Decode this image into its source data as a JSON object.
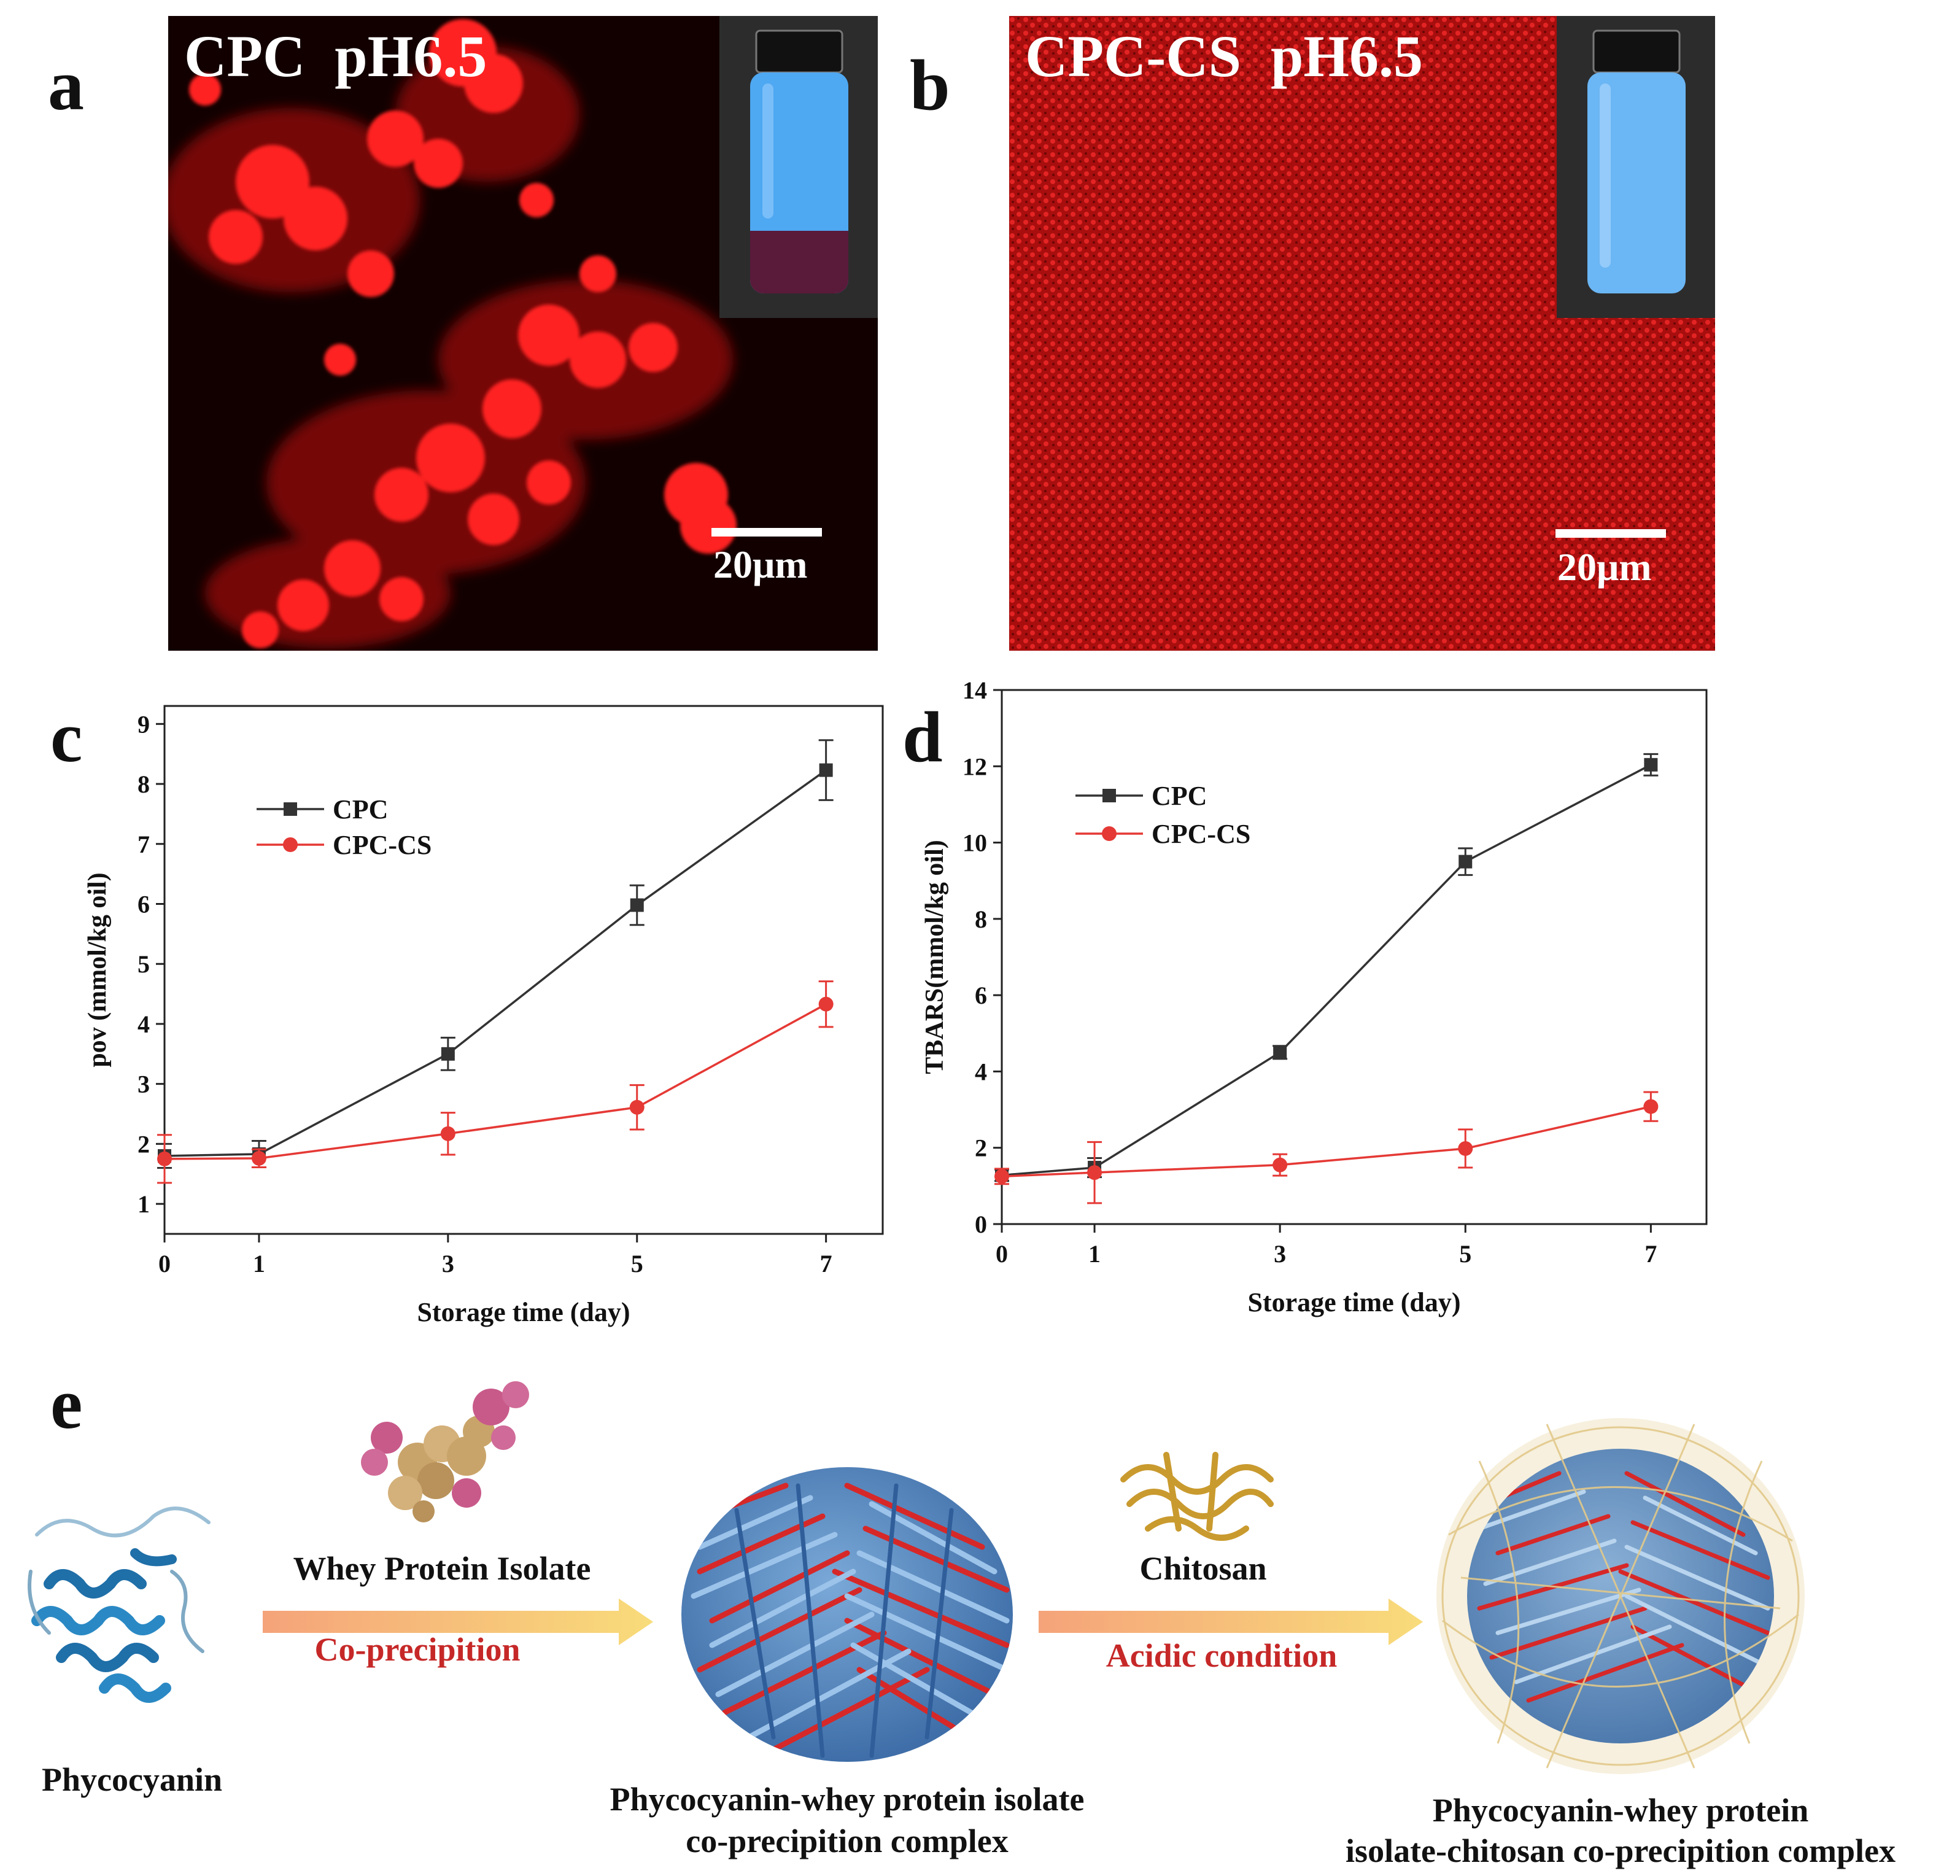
{
  "panels": {
    "a": {
      "letter": "a",
      "title": "CPC  pH6.5",
      "scale_label": "20μm"
    },
    "b": {
      "letter": "b",
      "title": "CPC-CS  pH6.5",
      "scale_label": "20μm"
    },
    "c": {
      "letter": "c"
    },
    "d": {
      "letter": "d"
    },
    "e": {
      "letter": "e"
    }
  },
  "colors": {
    "cpc_line": "#333333",
    "cpcs_line": "#e53935",
    "micro_red": "#d81818",
    "vial_blue": "#4ea8f2",
    "arrow": "#f5b88a",
    "condition_text": "#c62828"
  },
  "chart_data": [
    {
      "id": "c",
      "type": "line",
      "xlabel": "Storage time (day)",
      "ylabel": "pov (mmol/kg oil)",
      "x": [
        0,
        1,
        3,
        5,
        7
      ],
      "xticks": [
        "0",
        "1",
        "3",
        "5",
        "7"
      ],
      "yticks": [
        "1",
        "2",
        "3",
        "4",
        "5",
        "6",
        "7",
        "8",
        "9"
      ],
      "xlim": [
        0,
        7.6
      ],
      "ylim": [
        0.5,
        9.3
      ],
      "legend_position": "top-left",
      "series": [
        {
          "name": "CPC",
          "marker": "square",
          "color": "#333333",
          "values": [
            1.8,
            1.83,
            3.5,
            5.98,
            8.23
          ],
          "errors": [
            0.2,
            0.22,
            0.27,
            0.33,
            0.5
          ]
        },
        {
          "name": "CPC-CS",
          "marker": "circle",
          "color": "#e53935",
          "values": [
            1.75,
            1.76,
            2.17,
            2.61,
            4.33
          ],
          "errors": [
            0.4,
            0.15,
            0.35,
            0.37,
            0.38
          ]
        }
      ]
    },
    {
      "id": "d",
      "type": "line",
      "xlabel": "Storage time (day)",
      "ylabel": "TBARS(mmol/kg oil)",
      "x": [
        0,
        1,
        3,
        5,
        7
      ],
      "xticks": [
        "0",
        "1",
        "3",
        "5",
        "7"
      ],
      "yticks": [
        "0",
        "2",
        "4",
        "6",
        "8",
        "10",
        "12",
        "14"
      ],
      "xlim": [
        0,
        7.6
      ],
      "ylim": [
        0,
        14.0
      ],
      "legend_position": "top-left",
      "series": [
        {
          "name": "CPC",
          "marker": "square",
          "color": "#333333",
          "values": [
            1.28,
            1.48,
            4.5,
            9.5,
            12.04
          ],
          "errors": [
            0.15,
            0.25,
            0.17,
            0.35,
            0.28
          ]
        },
        {
          "name": "CPC-CS",
          "marker": "circle",
          "color": "#e53935",
          "values": [
            1.25,
            1.35,
            1.55,
            1.98,
            3.08
          ],
          "errors": [
            0.2,
            0.8,
            0.28,
            0.5,
            0.38
          ]
        }
      ]
    }
  ],
  "scheme": {
    "phycocyanin": "Phycocyanin",
    "whey": "Whey Protein Isolate",
    "coprecip": "Co-precipition",
    "complex1_line1": "Phycocyanin-whey protein isolate",
    "complex1_line2": "co-precipition complex",
    "chitosan": "Chitosan",
    "acidic": "Acidic condition",
    "complex2_line1": "Phycocyanin-whey protein",
    "complex2_line2": "isolate-chitosan co-precipition complex"
  }
}
